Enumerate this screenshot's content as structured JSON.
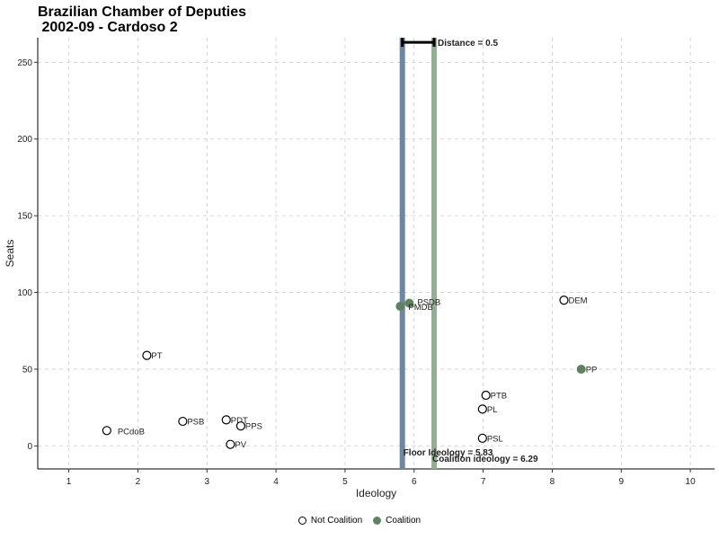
{
  "chart_data": {
    "type": "scatter",
    "title_line1": "Brazilian Chamber of Deputies",
    "title_line2": " 2002-09 - Cardoso 2",
    "xlabel": "Ideology",
    "ylabel": "Seats",
    "xlim": [
      0.55,
      10.35
    ],
    "ylim": [
      -15,
      266
    ],
    "x_ticks": [
      1,
      2,
      3,
      4,
      5,
      6,
      7,
      8,
      9,
      10
    ],
    "y_ticks": [
      0,
      50,
      100,
      150,
      200,
      250
    ],
    "grid": true,
    "series": [
      {
        "name": "Not Coalition",
        "color": "#ffffff",
        "points": [
          {
            "party": "PT",
            "x": 2.13,
            "y": 59
          },
          {
            "party": "PCdoB",
            "x": 1.55,
            "y": 10
          },
          {
            "party": "PSB",
            "x": 2.65,
            "y": 16
          },
          {
            "party": "PDT",
            "x": 3.28,
            "y": 17
          },
          {
            "party": "PPS",
            "x": 3.49,
            "y": 13
          },
          {
            "party": "PV",
            "x": 3.34,
            "y": 1
          },
          {
            "party": "DEM",
            "x": 8.17,
            "y": 95
          },
          {
            "party": "PTB",
            "x": 7.04,
            "y": 33
          },
          {
            "party": "PL",
            "x": 6.99,
            "y": 24
          },
          {
            "party": "PSL",
            "x": 6.99,
            "y": 5
          }
        ]
      },
      {
        "name": "Coalition",
        "color": "#5f8362",
        "points": [
          {
            "party": "PSDB",
            "x": 5.93,
            "y": 93
          },
          {
            "party": "PMDB",
            "x": 5.8,
            "y": 91
          },
          {
            "party": "PP",
            "x": 8.42,
            "y": 50
          }
        ]
      }
    ],
    "reference_lines": [
      {
        "label": "Floor Ideology = 5.83",
        "x": 5.83,
        "color": "#6d87a0",
        "text_color": "#2e4d6e"
      },
      {
        "label": "Coalition ideology = 6.29",
        "x": 6.29,
        "color": "#94ad94",
        "text_color": "#4e7a4e"
      }
    ],
    "distance_label": "Distance = 0.5",
    "distance_y": 263,
    "legend": {
      "position": "bottom",
      "items": [
        {
          "label": "Not Coalition",
          "style": "hollow"
        },
        {
          "label": "Coalition",
          "style": "filled"
        }
      ]
    }
  }
}
